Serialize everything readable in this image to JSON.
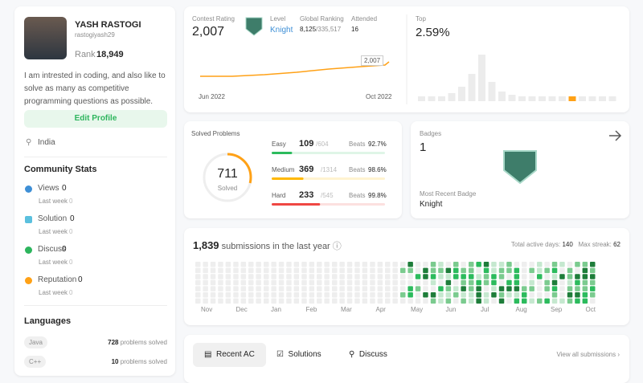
{
  "profile": {
    "name": "YASH RASTOGI",
    "username": "rastogiyash29",
    "rank_label": "Rank",
    "rank": "18,949",
    "bio": "I am intrested in coding, and also like to solve as many as competitive programming questions as possible.",
    "edit_button": "Edit Profile",
    "location": "India"
  },
  "community_stats": {
    "title": "Community Stats",
    "items": [
      {
        "label": "Views",
        "value": 0,
        "sub": "Last week",
        "sub_value": 0
      },
      {
        "label": "Solution",
        "value": 0,
        "sub": "Last week",
        "sub_value": 0
      },
      {
        "label": "Discuss",
        "value": 0,
        "sub": "Last week",
        "sub_value": 0
      },
      {
        "label": "Reputation",
        "value": 0,
        "sub": "Last week",
        "sub_value": 0
      }
    ]
  },
  "languages": {
    "title": "Languages",
    "items": [
      {
        "name": "Java",
        "count": 728,
        "suffix": "problems solved"
      },
      {
        "name": "C++",
        "count": 10,
        "suffix": "problems solved"
      }
    ]
  },
  "contest": {
    "rating_label": "Contest Rating",
    "rating": "2,007",
    "level_label": "Level",
    "level": "Knight",
    "global_label": "Global Ranking",
    "global": "8,125",
    "global_total": "/335,517",
    "attended_label": "Attended",
    "attended": 16,
    "chart_label": "2,007",
    "x_start": "Jun 2022",
    "x_end": "Oct 2022",
    "top_label": "Top",
    "top": "2.59%"
  },
  "solved": {
    "title": "Solved Problems",
    "total": 711,
    "total_label": "Solved",
    "rows": [
      {
        "label": "Easy",
        "solved": 109,
        "total": "/604",
        "beats_label": "Beats",
        "beats": "92.7%"
      },
      {
        "label": "Medium",
        "solved": 369,
        "total": "/1314",
        "beats_label": "Beats",
        "beats": "98.6%"
      },
      {
        "label": "Hard",
        "solved": 233,
        "total": "/545",
        "beats_label": "Beats",
        "beats": "99.8%"
      }
    ]
  },
  "badges": {
    "title": "Badges",
    "count": 1,
    "recent_label": "Most Recent Badge",
    "recent": "Knight"
  },
  "submissions": {
    "count": "1,839",
    "text": "submissions in the last year",
    "active_label": "Total active days:",
    "active": 140,
    "streak_label": "Max streak:",
    "streak": 62,
    "months": [
      "Nov",
      "Dec",
      "Jan",
      "Feb",
      "Mar",
      "Apr",
      "May",
      "Jun",
      "Jul",
      "Aug",
      "Sep",
      "Oct"
    ]
  },
  "tabs": {
    "items": [
      "Recent AC",
      "Solutions",
      "Discuss"
    ],
    "view_all": "View all submissions"
  }
}
